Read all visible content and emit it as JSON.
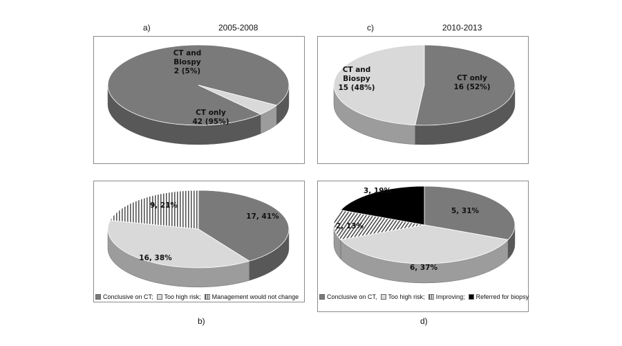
{
  "header": {
    "a_letter": "a)",
    "a_period": "2005-2008",
    "c_letter": "c)",
    "c_period": "2010-2013",
    "b_letter": "b)",
    "d_letter": "d)"
  },
  "colors": {
    "dark": "#7a7a7a",
    "light": "#d9d9d9",
    "black": "#000000",
    "hatch": "#ffffff"
  },
  "chart_data": [
    {
      "id": "a",
      "type": "pie",
      "title": "2005-2008",
      "slices": [
        {
          "label": "CT only",
          "value": 42,
          "text": "42 (95%)",
          "fill": "dark"
        },
        {
          "label": "CT and Biospy",
          "value": 2,
          "text": "2 (5%)",
          "fill": "light"
        }
      ]
    },
    {
      "id": "c",
      "type": "pie",
      "title": "2010-2013",
      "slices": [
        {
          "label": "CT only",
          "value": 16,
          "text": "16 (52%)",
          "fill": "dark"
        },
        {
          "label": "CT and Biospy",
          "value": 15,
          "text": "15 (48%)",
          "fill": "light"
        }
      ]
    },
    {
      "id": "b",
      "type": "pie",
      "slices": [
        {
          "label": "Conclusive on CT;",
          "value": 17,
          "text": "17, 41%",
          "fill": "dark"
        },
        {
          "label": "Too high risk;",
          "value": 16,
          "text": "16, 38%",
          "fill": "light"
        },
        {
          "label": "Management would not change",
          "value": 9,
          "text": "9, 21%",
          "fill": "hatch"
        }
      ],
      "legend": [
        "Conclusive on CT;",
        "Too high risk;",
        "Management would not change"
      ]
    },
    {
      "id": "d",
      "type": "pie",
      "slices": [
        {
          "label": "Conclusive on CT,",
          "value": 5,
          "text": "5, 31%",
          "fill": "dark"
        },
        {
          "label": "Too high risk;",
          "value": 6,
          "text": "6, 37%",
          "fill": "light"
        },
        {
          "label": "Improving;",
          "value": 2,
          "text": "2, 13%",
          "fill": "hatch"
        },
        {
          "label": "Referred for biopsy",
          "value": 3,
          "text": "3, 19%",
          "fill": "black"
        }
      ],
      "legend": [
        "Conclusive on CT,",
        "Too high risk;",
        "Improving;",
        "Referred for biopsy"
      ]
    }
  ]
}
